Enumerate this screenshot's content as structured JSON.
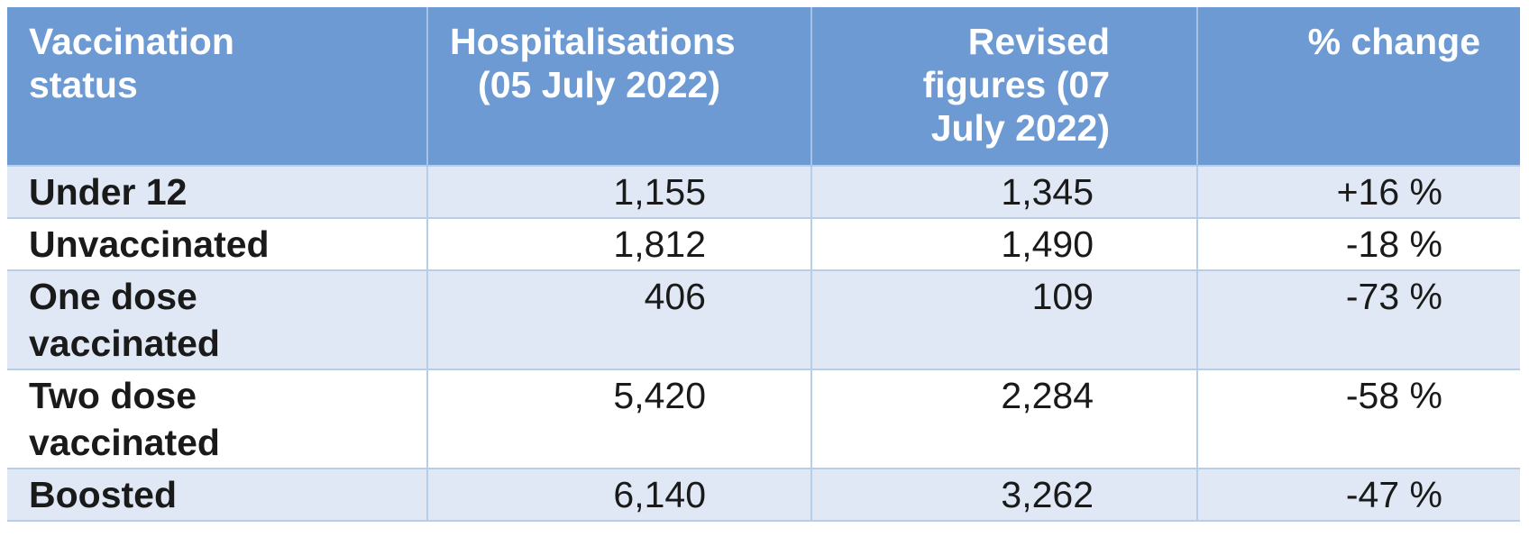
{
  "table": {
    "headers": {
      "status_line1": "Vaccination",
      "status_line2": "status",
      "hosp_line1": "Hospitalisations",
      "hosp_line2": "(05 July 2022)",
      "rev_line1": "Revised",
      "rev_line2": "figures (07",
      "rev_line3": "July 2022)",
      "change": "% change"
    },
    "rows": [
      {
        "status_line1": "Under 12",
        "status_line2": "",
        "hospitalisations": "1,155",
        "revised": "1,345",
        "change": "+16 %"
      },
      {
        "status_line1": "Unvaccinated",
        "status_line2": "",
        "hospitalisations": "1,812",
        "revised": "1,490",
        "change": "-18 %"
      },
      {
        "status_line1": "One dose",
        "status_line2": "vaccinated",
        "hospitalisations": "406",
        "revised": "109",
        "change": "-73 %"
      },
      {
        "status_line1": "Two dose",
        "status_line2": "vaccinated",
        "hospitalisations": "5,420",
        "revised": "2,284",
        "change": "-58 %"
      },
      {
        "status_line1": "Boosted",
        "status_line2": "",
        "hospitalisations": "6,140",
        "revised": "3,262",
        "change": "-47 %"
      }
    ]
  },
  "colors": {
    "header_background": "#6d9ad2",
    "header_text": "#ffffff",
    "band_row": "#dfe8f4",
    "plain_row": "#ffffff",
    "grid_line": "#b8cde8"
  }
}
